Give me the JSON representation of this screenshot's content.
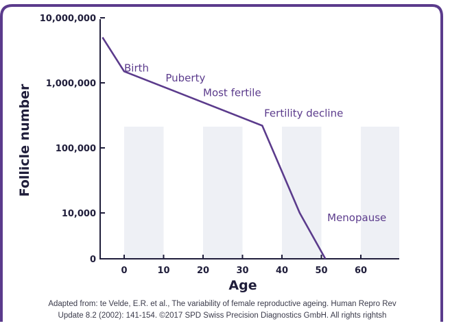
{
  "chart_data": {
    "type": "line",
    "title": "",
    "xlabel": "Age",
    "ylabel": "Follicle number",
    "x_ticks": [
      0,
      10,
      20,
      30,
      40,
      50,
      60
    ],
    "y_ticks": [
      {
        "value": 0,
        "label": "0"
      },
      {
        "value": 10000,
        "label": "10,000"
      },
      {
        "value": 100000,
        "label": "100,000"
      },
      {
        "value": 1000000,
        "label": "1,000,000"
      },
      {
        "value": 10000000,
        "label": "10,000,000"
      }
    ],
    "xlim": [
      -5.5,
      70
    ],
    "y_scale": "log",
    "series": [
      {
        "color": "#5b3b8c",
        "points": [
          {
            "x": -5.5,
            "y": 5000000
          },
          {
            "x": 0,
            "y": 1500000
          },
          {
            "x": 35,
            "y": 220000
          },
          {
            "x": 44.5,
            "y": 10000
          },
          {
            "x": 51,
            "y": 0
          }
        ]
      }
    ],
    "annotations": [
      {
        "text": "Birth",
        "x": 0,
        "y": 1500000
      },
      {
        "text": "Puberty",
        "x": 10.5,
        "y": 1050000
      },
      {
        "text": "Most fertile",
        "x": 20,
        "y": 620000
      },
      {
        "text": "Fertility decline",
        "x": 35.5,
        "y": 300000
      },
      {
        "text": "Menopause",
        "x": 51.5,
        "y": 7500
      }
    ],
    "shaded_bands": [
      [
        0,
        10
      ],
      [
        20,
        30
      ],
      [
        40,
        50
      ],
      [
        60,
        70
      ]
    ]
  },
  "source_note": {
    "line1": "Adapted from: te Velde, E.R. et al., The variability of female reproductive ageing. Human Repro Rev",
    "line2": "Update 8.2 (2002): 141-154. ©2017 SPD Swiss Precision Diagnostics GmbH. All rights rightsh"
  },
  "colors": {
    "frame": "#5b3b8c",
    "line": "#5b3b8c",
    "axis": "#1f1d3a",
    "band": "#eef0f5"
  }
}
